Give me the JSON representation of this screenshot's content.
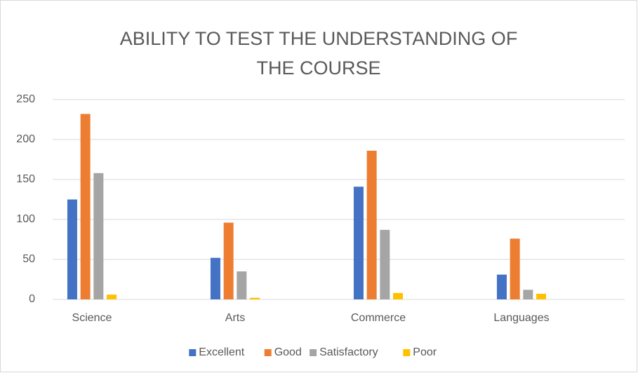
{
  "chart_data": {
    "type": "bar",
    "title": "ABILITY TO TEST THE UNDERSTANDING OF THE COURSE",
    "categories": [
      "Science",
      "Arts",
      "Commerce",
      "Languages"
    ],
    "series": [
      {
        "name": "Excellent",
        "color": "#4472c4",
        "values": [
          125,
          52,
          141,
          31
        ]
      },
      {
        "name": "Good",
        "color": "#ed7d31",
        "values": [
          232,
          96,
          186,
          76
        ]
      },
      {
        "name": "Satisfactory",
        "color": "#a5a5a5",
        "values": [
          158,
          35,
          87,
          12
        ]
      },
      {
        "name": "Poor",
        "color": "#ffc000",
        "values": [
          6,
          2,
          8,
          7
        ]
      }
    ],
    "ylim": [
      0,
      250
    ],
    "yticks": [
      0,
      50,
      100,
      150,
      200,
      250
    ],
    "grid": true,
    "legend": "bottom"
  }
}
